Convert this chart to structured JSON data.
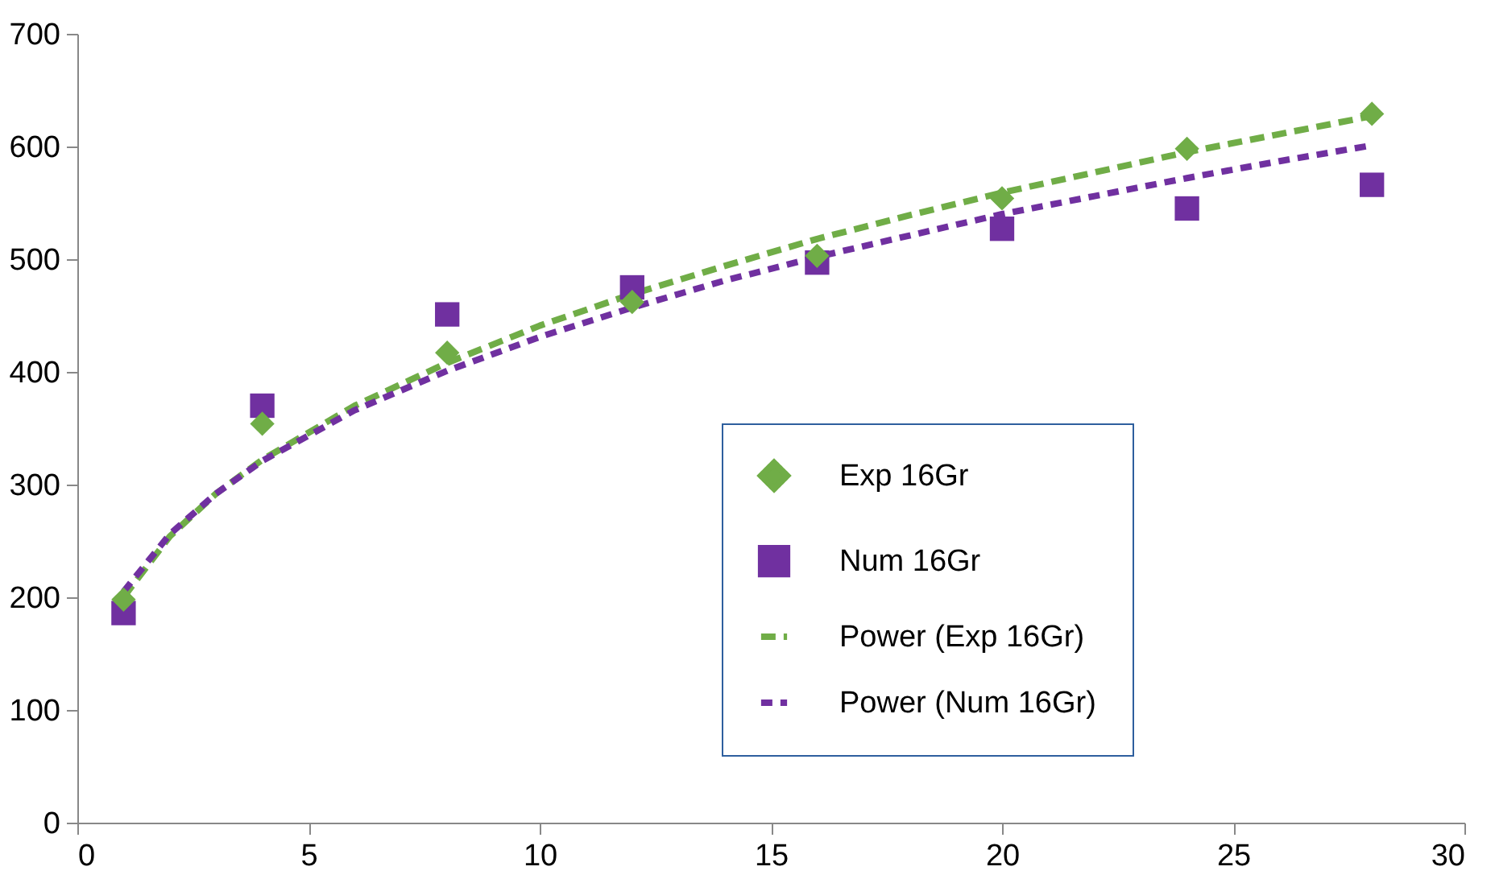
{
  "chart_data": {
    "type": "scatter",
    "xlim": [
      0,
      30
    ],
    "xticks": [
      0,
      5,
      10,
      15,
      20,
      25,
      30
    ],
    "ylim": [
      0,
      700
    ],
    "yticks": [
      0,
      100,
      200,
      300,
      400,
      500,
      600,
      700
    ],
    "grid": false,
    "legend": "bottom right",
    "series": [
      {
        "name": "Exp 16Gr",
        "marker": "diamond",
        "color": "#70ad47",
        "x": [
          1,
          4,
          8,
          12,
          16,
          20,
          24,
          28
        ],
        "values": [
          198,
          354,
          417,
          462,
          503,
          554,
          598,
          629
        ]
      },
      {
        "name": "Num 16Gr",
        "marker": "square",
        "color": "#7030a0",
        "x": [
          1,
          4,
          8,
          12,
          16,
          20,
          24,
          28
        ],
        "values": [
          186,
          370,
          451,
          475,
          497,
          527,
          545,
          566
        ]
      },
      {
        "name": "Power (Exp 16Gr)",
        "type": "line",
        "line_style": "dashed",
        "color": "#70ad47",
        "x": [
          1,
          2,
          3,
          4,
          6,
          8,
          10,
          12,
          14,
          16,
          18,
          20,
          22,
          24,
          26,
          28
        ],
        "values": [
          200,
          254,
          292,
          322,
          370,
          408,
          441,
          469,
          494,
          518,
          539,
          559,
          577,
          595,
          611,
          627
        ]
      },
      {
        "name": "Power (Num 16Gr)",
        "type": "line",
        "line_style": "dashed",
        "color": "#7030a0",
        "x": [
          1,
          2,
          3,
          4,
          6,
          8,
          10,
          12,
          14,
          16,
          18,
          20,
          22,
          24,
          26,
          28
        ],
        "values": [
          205,
          256,
          292,
          321,
          366,
          401,
          431,
          457,
          481,
          502,
          521,
          540,
          556,
          572,
          587,
          601
        ]
      }
    ]
  }
}
